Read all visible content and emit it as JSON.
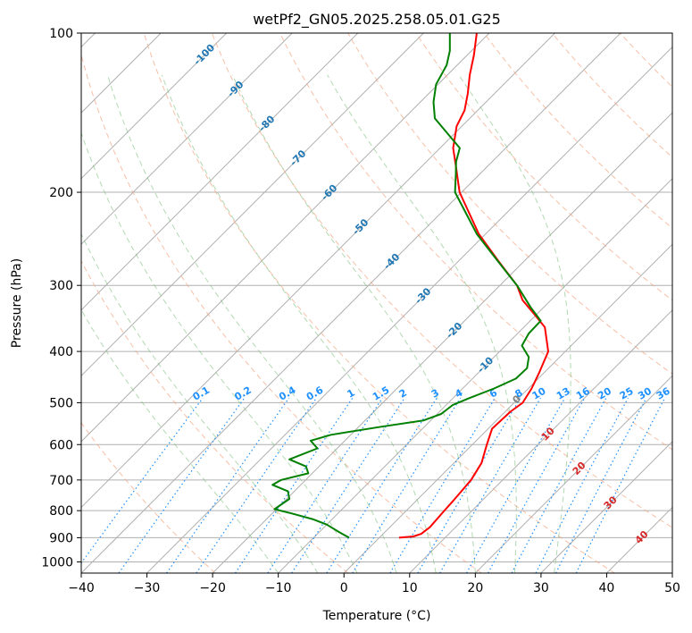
{
  "chart_data": {
    "type": "skew-t",
    "title": "wetPf2_GN05.2025.258.05.01.G25",
    "xlabel": "Temperature (°C)",
    "ylabel": "Pressure (hPa)",
    "xlim": [
      -40,
      50
    ],
    "ylim": [
      1050,
      100
    ],
    "y_scale": "log",
    "skew_degrees": 45,
    "grid": true,
    "x_ticks": [
      -40,
      -30,
      -20,
      -10,
      0,
      10,
      20,
      30,
      40,
      50
    ],
    "x_tick_labels": [
      "−40",
      "−30",
      "−20",
      "−10",
      "0",
      "10",
      "20",
      "30",
      "40",
      "50"
    ],
    "y_ticks": [
      100,
      200,
      300,
      400,
      500,
      600,
      700,
      800,
      900,
      1000
    ],
    "y_tick_labels": [
      "100",
      "200",
      "300",
      "400",
      "500",
      "600",
      "700",
      "800",
      "900",
      "1000"
    ],
    "series": [
      {
        "role": "temperature",
        "color": "#ff0000",
        "points": [
          {
            "p": 900,
            "t": 3
          },
          {
            "p": 895,
            "t": 5
          },
          {
            "p": 885,
            "t": 5.8
          },
          {
            "p": 860,
            "t": 6.1
          },
          {
            "p": 800,
            "t": 5.8
          },
          {
            "p": 760,
            "t": 5.6
          },
          {
            "p": 700,
            "t": 5.2
          },
          {
            "p": 650,
            "t": 4.2
          },
          {
            "p": 600,
            "t": 2.2
          },
          {
            "p": 560,
            "t": 0.6
          },
          {
            "p": 520,
            "t": 0.8
          },
          {
            "p": 500,
            "t": 1.3
          },
          {
            "p": 470,
            "t": 0.5
          },
          {
            "p": 440,
            "t": -0.7
          },
          {
            "p": 400,
            "t": -2.6
          },
          {
            "p": 360,
            "t": -6.8
          },
          {
            "p": 340,
            "t": -10.4
          },
          {
            "p": 320,
            "t": -14.3
          },
          {
            "p": 300,
            "t": -17.4
          },
          {
            "p": 270,
            "t": -23.9
          },
          {
            "p": 240,
            "t": -31.0
          },
          {
            "p": 200,
            "t": -40.3
          },
          {
            "p": 180,
            "t": -44.5
          },
          {
            "p": 165,
            "t": -48.0
          },
          {
            "p": 150,
            "t": -50.8
          },
          {
            "p": 140,
            "t": -52.0
          },
          {
            "p": 130,
            "t": -54.1
          },
          {
            "p": 120,
            "t": -56.6
          },
          {
            "p": 110,
            "t": -59.0
          },
          {
            "p": 100,
            "t": -61.9
          }
        ]
      },
      {
        "role": "dewpoint",
        "color": "#008000",
        "points": [
          {
            "p": 900,
            "t": -4.6
          },
          {
            "p": 880,
            "t": -6.8
          },
          {
            "p": 850,
            "t": -10.0
          },
          {
            "p": 830,
            "t": -13.0
          },
          {
            "p": 810,
            "t": -17.0
          },
          {
            "p": 795,
            "t": -20.3
          },
          {
            "p": 760,
            "t": -19.6
          },
          {
            "p": 735,
            "t": -21.0
          },
          {
            "p": 715,
            "t": -24.3
          },
          {
            "p": 700,
            "t": -23.7
          },
          {
            "p": 680,
            "t": -20.6
          },
          {
            "p": 660,
            "t": -22.0
          },
          {
            "p": 640,
            "t": -25.6
          },
          {
            "p": 610,
            "t": -23.0
          },
          {
            "p": 590,
            "t": -25.2
          },
          {
            "p": 575,
            "t": -23.0
          },
          {
            "p": 555,
            "t": -16.5
          },
          {
            "p": 540,
            "t": -11.1
          },
          {
            "p": 525,
            "t": -9.4
          },
          {
            "p": 505,
            "t": -9.0
          },
          {
            "p": 490,
            "t": -7.5
          },
          {
            "p": 470,
            "t": -5.2
          },
          {
            "p": 450,
            "t": -3.4
          },
          {
            "p": 430,
            "t": -3.3
          },
          {
            "p": 410,
            "t": -4.7
          },
          {
            "p": 390,
            "t": -7.5
          },
          {
            "p": 370,
            "t": -8.3
          },
          {
            "p": 350,
            "t": -8.4
          },
          {
            "p": 330,
            "t": -12.0
          },
          {
            "p": 300,
            "t": -17.4
          },
          {
            "p": 270,
            "t": -24.0
          },
          {
            "p": 240,
            "t": -31.3
          },
          {
            "p": 210,
            "t": -38.4
          },
          {
            "p": 200,
            "t": -41.0
          },
          {
            "p": 185,
            "t": -43.6
          },
          {
            "p": 175,
            "t": -45.5
          },
          {
            "p": 165,
            "t": -47.0
          },
          {
            "p": 155,
            "t": -51.0
          },
          {
            "p": 145,
            "t": -55.3
          },
          {
            "p": 135,
            "t": -58.0
          },
          {
            "p": 125,
            "t": -60.3
          },
          {
            "p": 115,
            "t": -61.6
          },
          {
            "p": 108,
            "t": -63.3
          },
          {
            "p": 100,
            "t": -66.0
          }
        ]
      }
    ],
    "isotherm_labels": {
      "values": [
        -100,
        -90,
        -80,
        -70,
        -60,
        -50,
        -40,
        -30,
        -20,
        -10,
        0,
        10,
        20,
        30,
        40
      ],
      "labels": [
        "-100",
        "-90",
        "-80",
        "-70",
        "-60",
        "-50",
        "-40",
        "-30",
        "-20",
        "-10",
        "0",
        "10",
        "20",
        "30",
        "40"
      ],
      "colors": [
        "#1f77b4",
        "#1f77b4",
        "#1f77b4",
        "#1f77b4",
        "#1f77b4",
        "#1f77b4",
        "#1f77b4",
        "#1f77b4",
        "#1f77b4",
        "#1f77b4",
        "#808080",
        "#d62728",
        "#d62728",
        "#d62728",
        "#d62728"
      ]
    },
    "mixing_ratio_labels": {
      "values": [
        0.1,
        0.2,
        0.4,
        0.6,
        1,
        1.5,
        2,
        3,
        4,
        6,
        8,
        10,
        13,
        16,
        20,
        25,
        30,
        36
      ],
      "labels": [
        "0.1",
        "0.2",
        "0.4",
        "0.6",
        "1",
        "1.5",
        "2",
        "3",
        "4",
        "6",
        "8",
        "10",
        "13",
        "16",
        "20",
        "25",
        "30",
        "36"
      ],
      "label_pressure": 490,
      "color": "#1e90ff"
    },
    "dry_adiabat_thetas": [
      230,
      250,
      270,
      290,
      310,
      330,
      350,
      370,
      390,
      410,
      430,
      450,
      470,
      490,
      510
    ],
    "moist_adiabat_starts": [
      -10,
      -4,
      2,
      8,
      14,
      20,
      26,
      32
    ]
  }
}
